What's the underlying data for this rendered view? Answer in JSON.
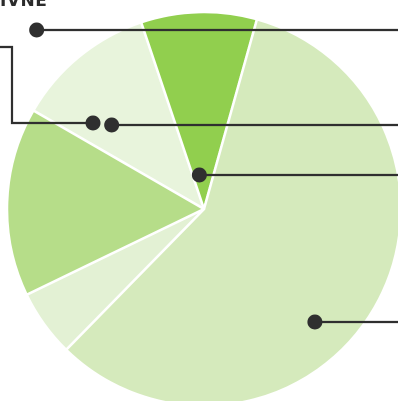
{
  "header": {
    "cut_label": "IVNE"
  },
  "chart_data": {
    "type": "pie",
    "title": "",
    "start_angle_deg": -60,
    "slices": [
      {
        "value": 11.5,
        "color": "#e8f4dc"
      },
      {
        "value": 9.5,
        "color": "#91cf4e"
      },
      {
        "value": 58.0,
        "color": "#d5eabc"
      },
      {
        "value": 5.5,
        "color": "#e3f1d4"
      },
      {
        "value": 15.5,
        "color": "#b6dd89"
      }
    ],
    "callout_order_top_to_bottom": [
      4,
      0,
      1,
      2
    ]
  }
}
